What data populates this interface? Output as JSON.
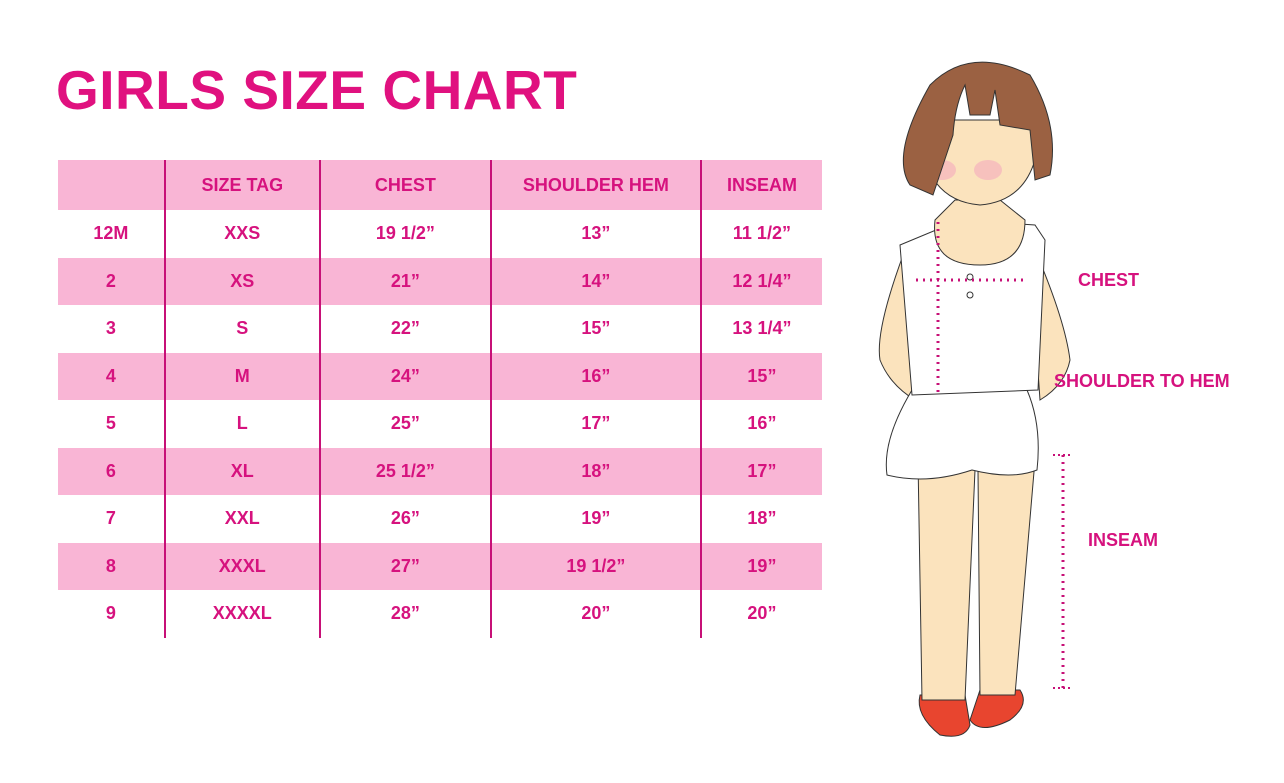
{
  "title": "GIRLS SIZE CHART",
  "table": {
    "headers": [
      "",
      "SIZE TAG",
      "CHEST",
      "SHOULDER HEM",
      "INSEAM"
    ],
    "rows": [
      [
        "12M",
        "XXS",
        "19 1/2”",
        "13”",
        "11 1/2”"
      ],
      [
        "2",
        "XS",
        "21”",
        "14”",
        "12 1/4”"
      ],
      [
        "3",
        "S",
        "22”",
        "15”",
        "13 1/4”"
      ],
      [
        "4",
        "M",
        "24”",
        "16”",
        "15”"
      ],
      [
        "5",
        "L",
        "25”",
        "17”",
        "16”"
      ],
      [
        "6",
        "XL",
        "25 1/2”",
        "18”",
        "17”"
      ],
      [
        "7",
        "XXL",
        "26”",
        "19”",
        "18”"
      ],
      [
        "8",
        "XXXL",
        "27”",
        "19 1/2”",
        "19”"
      ],
      [
        "9",
        "XXXXL",
        "28”",
        "20”",
        "20”"
      ]
    ]
  },
  "illustration": {
    "labels": {
      "chest": "CHEST",
      "shoulder_to_hem": "SHOULDER TO HEM",
      "inseam": "INSEAM"
    }
  },
  "colors": {
    "accent": "#d6127e",
    "row_pink": "#f9b5d5",
    "hair": "#9b6142",
    "skin": "#fbe3bd",
    "shoes": "#e8452f"
  }
}
